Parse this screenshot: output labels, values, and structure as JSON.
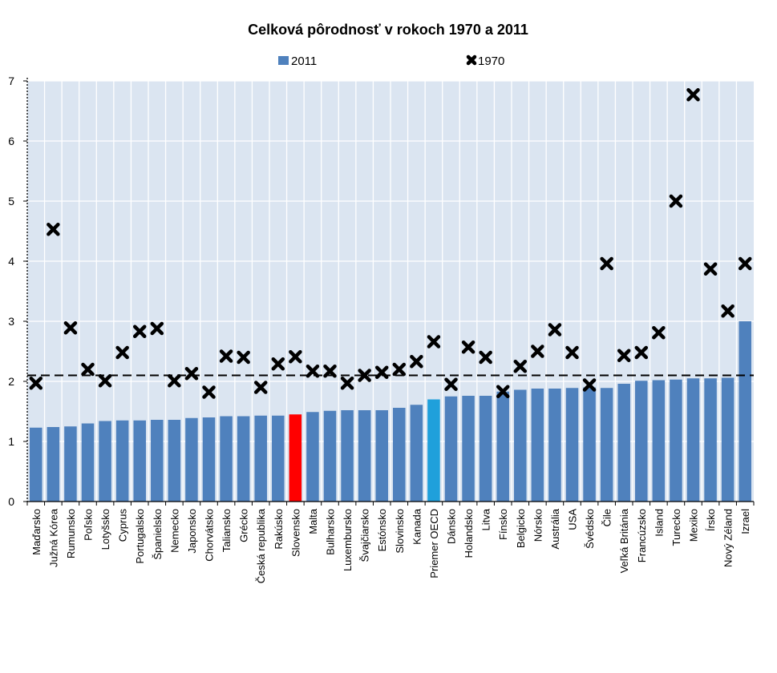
{
  "chart_data": {
    "type": "bar",
    "title": "Celková pôrodnosť v rokoch 1970 a 2011",
    "legend": {
      "placement": "top-center",
      "entries": [
        "2011",
        "1970"
      ]
    },
    "ylim": [
      0,
      7
    ],
    "yticks": [
      "0",
      "1",
      "2",
      "3",
      "4",
      "5",
      "6",
      "7"
    ],
    "reference_line": 2.1,
    "grid": true,
    "categories": [
      "Maďarsko",
      "Južná Kórea",
      "Rumunsko",
      "Poľsko",
      "Lotyšsko",
      "Cyprus",
      "Portugalsko",
      "Španielsko",
      "Nemecko",
      "Japonsko",
      "Chorvátsko",
      "Taliansko",
      "Grécko",
      "Česká republika",
      "Rakúsko",
      "Slovensko",
      "Malta",
      "Bulharsko",
      "Luxembursko",
      "Švajčiarsko",
      "Estónsko",
      "Slovinsko",
      "Kanada",
      "Priemer OECD",
      "Dánsko",
      "Holandsko",
      "Litva",
      "Fínsko",
      "Belgicko",
      "Nórsko",
      "Austrália",
      "USA",
      "Švédsko",
      "Čile",
      "Veľká Británia",
      "Francúzsko",
      "Island",
      "Turecko",
      "Mexiko",
      "Írsko",
      "Nový Zéland",
      "Izrael"
    ],
    "series": [
      {
        "name": "2011",
        "mark": "bar",
        "color": "#4f81bd",
        "values": [
          1.23,
          1.24,
          1.25,
          1.3,
          1.34,
          1.35,
          1.35,
          1.36,
          1.36,
          1.39,
          1.4,
          1.42,
          1.42,
          1.43,
          1.43,
          1.45,
          1.49,
          1.51,
          1.52,
          1.52,
          1.52,
          1.56,
          1.61,
          1.7,
          1.75,
          1.76,
          1.76,
          1.83,
          1.86,
          1.88,
          1.88,
          1.89,
          1.9,
          1.89,
          1.96,
          2.01,
          2.02,
          2.03,
          2.05,
          2.05,
          2.06,
          3.0
        ]
      },
      {
        "name": "1970",
        "mark": "x",
        "color": "#000000",
        "values": [
          1.97,
          4.53,
          2.89,
          2.2,
          2.01,
          2.48,
          2.83,
          2.88,
          2.01,
          2.13,
          1.82,
          2.42,
          2.4,
          1.9,
          2.29,
          2.41,
          2.17,
          2.17,
          1.97,
          2.1,
          2.15,
          2.2,
          2.33,
          2.66,
          1.95,
          2.57,
          2.4,
          1.83,
          2.25,
          2.5,
          2.86,
          2.48,
          1.94,
          3.96,
          2.43,
          2.48,
          2.81,
          5.0,
          6.77,
          3.87,
          3.17,
          3.96
        ]
      }
    ],
    "highlight_colors": {
      "Slovensko": "#ff0000",
      "Priemer OECD": "#1fa0db"
    }
  }
}
